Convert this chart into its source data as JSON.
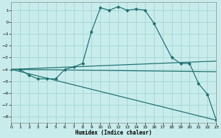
{
  "xlabel": "Humidex (Indice chaleur)",
  "background_color": "#c8ecec",
  "grid_color": "#9dcfcf",
  "line_color": "#1e7070",
  "xlim": [
    0,
    23
  ],
  "ylim": [
    -8.5,
    1.7
  ],
  "xticks": [
    0,
    1,
    2,
    3,
    4,
    5,
    6,
    7,
    8,
    9,
    10,
    11,
    12,
    13,
    14,
    15,
    16,
    17,
    18,
    19,
    20,
    21,
    22,
    23
  ],
  "yticks": [
    -8,
    -7,
    -6,
    -5,
    -4,
    -3,
    -2,
    -1,
    0,
    1
  ],
  "line1_x": [
    0,
    1,
    2,
    3,
    4,
    5,
    6,
    7,
    8,
    9,
    10,
    11,
    12,
    13,
    14,
    15,
    16,
    18,
    19,
    20,
    21,
    22,
    23
  ],
  "line1_y": [
    -4.0,
    -4.0,
    -4.5,
    -4.8,
    -4.8,
    -4.8,
    -4.0,
    -3.8,
    -3.5,
    -0.8,
    1.2,
    1.0,
    1.3,
    1.0,
    1.1,
    1.0,
    -0.1,
    -3.0,
    -3.5,
    -3.5,
    -5.2,
    -6.1,
    -8.3
  ],
  "line2_x": [
    0,
    23
  ],
  "line2_y": [
    -4.0,
    -3.3
  ],
  "line3_x": [
    0,
    23
  ],
  "line3_y": [
    -4.0,
    -4.2
  ],
  "line4_x": [
    0,
    23
  ],
  "line4_y": [
    -4.0,
    -8.3
  ]
}
